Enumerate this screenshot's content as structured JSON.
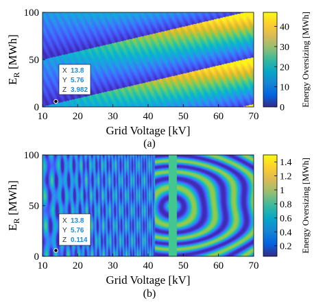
{
  "chart_data": [
    {
      "panel_label": "(a)",
      "type": "heatmap",
      "xlabel": "Grid Voltage [kV]",
      "ylabel_main": "E",
      "ylabel_sub": "R",
      "ylabel_unit": " [MWh]",
      "xlim": [
        10,
        70
      ],
      "ylim": [
        0,
        100
      ],
      "x_ticks": [
        "10",
        "20",
        "30",
        "40",
        "50",
        "60",
        "70"
      ],
      "y_ticks": [
        "0",
        "50",
        "100"
      ],
      "colorbar": {
        "label": "Energy Oversizing [MWh]",
        "clim": [
          0,
          47
        ],
        "ticks": [
          "0",
          "10",
          "20",
          "30",
          "40"
        ]
      },
      "datatip": {
        "point": [
          13.8,
          5.76
        ],
        "x_key": "X",
        "x_val": "13.8",
        "y_key": "Y",
        "y_val": "5.76",
        "z_key": "Z",
        "z_val": "3.982"
      }
    },
    {
      "panel_label": "(b)",
      "type": "heatmap",
      "xlabel": "Grid Voltage [kV]",
      "ylabel_main": "E",
      "ylabel_sub": "R",
      "ylabel_unit": " [MWh]",
      "xlim": [
        10,
        70
      ],
      "ylim": [
        0,
        100
      ],
      "x_ticks": [
        "10",
        "20",
        "30",
        "40",
        "50",
        "60",
        "70"
      ],
      "y_ticks": [
        "0",
        "50",
        "100"
      ],
      "colorbar": {
        "label": "Energy Oversizing [MWh]",
        "clim": [
          0.05,
          1.5
        ],
        "ticks": [
          "0.2",
          "0.4",
          "0.6",
          "0.8",
          "1",
          "1.2",
          "1.4"
        ]
      },
      "datatip": {
        "point": [
          13.8,
          5.76
        ],
        "x_key": "X",
        "x_val": "13.8",
        "y_key": "Y",
        "y_val": "5.76",
        "z_key": "Z",
        "z_val": "0.114"
      }
    }
  ]
}
